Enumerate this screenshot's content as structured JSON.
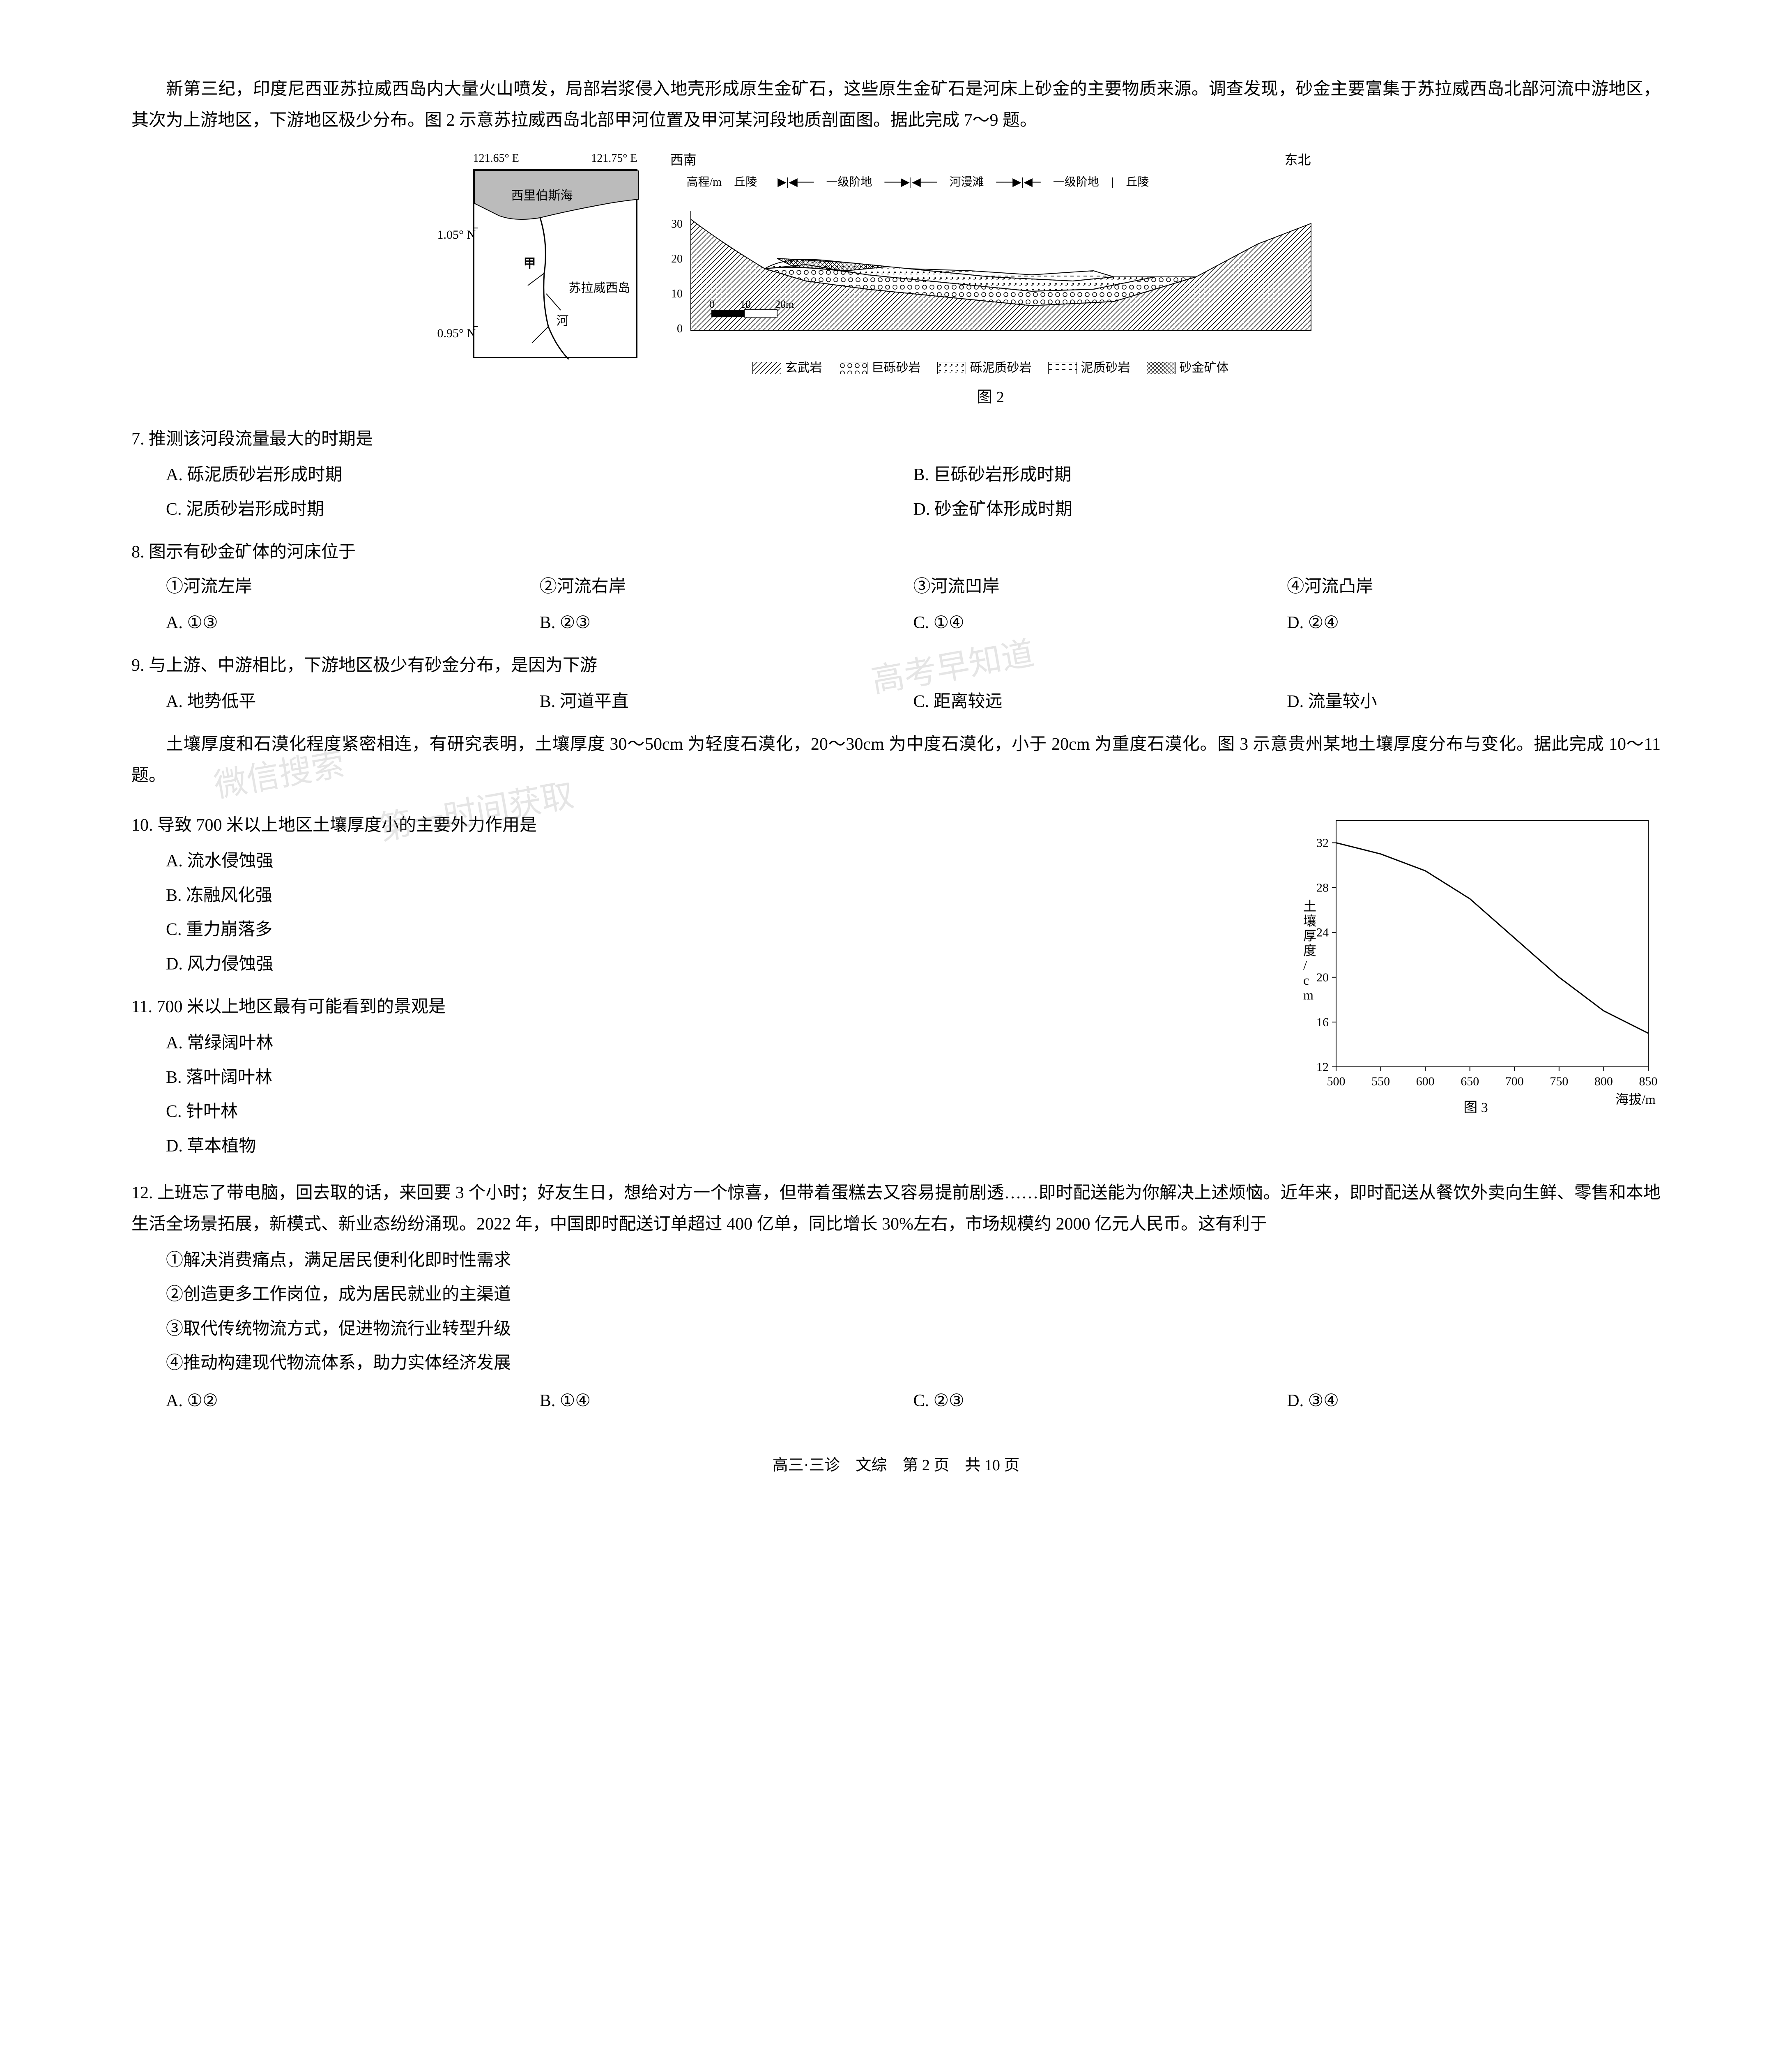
{
  "passage1": {
    "text": "新第三纪，印度尼西亚苏拉威西岛内大量火山喷发，局部岩浆侵入地壳形成原生金矿石，这些原生金矿石是河床上砂金的主要物质来源。调查发现，砂金主要富集于苏拉威西岛北部河流中游地区，其次为上游地区，下游地区极少分布。图 2 示意苏拉威西岛北部甲河位置及甲河某河段地质剖面图。据此完成 7～9 题。"
  },
  "figure2": {
    "caption": "图 2",
    "map": {
      "lon_left": "121.65° E",
      "lon_right": "121.75° E",
      "lat_top": "1.05° N",
      "lat_bottom": "0.95° N",
      "sea_label": "西里伯斯海",
      "island_label": "苏拉威西岛",
      "river_label": "甲",
      "river_char": "河"
    },
    "cross_section": {
      "direction_left": "西南",
      "direction_right": "东北",
      "yaxis_label": "高程/m",
      "regions": [
        "丘陵",
        "一级阶地",
        "河漫滩",
        "一级阶地",
        "丘陵"
      ],
      "yticks": [
        0,
        10,
        20,
        30
      ],
      "scale_bar": "0    10    20m"
    },
    "legend": [
      {
        "pattern": "diag",
        "label": "玄武岩"
      },
      {
        "pattern": "bigdots",
        "label": "巨砾砂岩"
      },
      {
        "pattern": "smalldots",
        "label": "砾泥质砂岩"
      },
      {
        "pattern": "dashes",
        "label": "泥质砂岩"
      },
      {
        "pattern": "crosshatch",
        "label": "砂金矿体"
      }
    ]
  },
  "q7": {
    "stem": "7. 推测该河段流量最大的时期是",
    "A": "A. 砾泥质砂岩形成时期",
    "B": "B. 巨砾砂岩形成时期",
    "C": "C. 泥质砂岩形成时期",
    "D": "D. 砂金矿体形成时期"
  },
  "q8": {
    "stem": "8. 图示有砂金矿体的河床位于",
    "circ1": "①河流左岸",
    "circ2": "②河流右岸",
    "circ3": "③河流凹岸",
    "circ4": "④河流凸岸",
    "A": "A. ①③",
    "B": "B. ②③",
    "C": "C. ①④",
    "D": "D. ②④"
  },
  "q9": {
    "stem": "9. 与上游、中游相比，下游地区极少有砂金分布，是因为下游",
    "A": "A. 地势低平",
    "B": "B. 河道平直",
    "C": "C. 距离较远",
    "D": "D. 流量较小"
  },
  "passage2": {
    "text": "土壤厚度和石漠化程度紧密相连，有研究表明，土壤厚度 30～50cm 为轻度石漠化，20～30cm 为中度石漠化，小于 20cm 为重度石漠化。图 3 示意贵州某地土壤厚度分布与变化。据此完成 10～11 题。"
  },
  "figure3": {
    "caption": "图 3",
    "xlabel": "海拔/m",
    "ylabel": "土壤厚度/cm",
    "xlim": [
      500,
      850
    ],
    "ylim": [
      12,
      34
    ],
    "xticks": [
      500,
      550,
      600,
      650,
      700,
      750,
      800,
      850
    ],
    "yticks": [
      12,
      16,
      20,
      24,
      28,
      32
    ],
    "data_points": [
      [
        500,
        32
      ],
      [
        550,
        31
      ],
      [
        600,
        29.5
      ],
      [
        650,
        27
      ],
      [
        700,
        23.5
      ],
      [
        750,
        20
      ],
      [
        800,
        17
      ],
      [
        850,
        15
      ]
    ],
    "line_color": "#000000",
    "line_width": 3,
    "background_color": "#ffffff",
    "axis_color": "#000000",
    "font_size": 30
  },
  "q10": {
    "stem": "10. 导致 700 米以上地区土壤厚度小的主要外力作用是",
    "A": "A. 流水侵蚀强",
    "B": "B. 冻融风化强",
    "C": "C. 重力崩落多",
    "D": "D. 风力侵蚀强"
  },
  "q11": {
    "stem": "11. 700 米以上地区最有可能看到的景观是",
    "A": "A. 常绿阔叶林",
    "B": "B. 落叶阔叶林",
    "C": "C. 针叶林",
    "D": "D. 草本植物"
  },
  "q12": {
    "stem": "12. 上班忘了带电脑，回去取的话，来回要 3 个小时；好友生日，想给对方一个惊喜，但带着蛋糕去又容易提前剧透……即时配送能为你解决上述烦恼。近年来，即时配送从餐饮外卖向生鲜、零售和本地生活全场景拓展，新模式、新业态纷纷涌现。2022 年，中国即时配送订单超过 400 亿单，同比增长 30%左右，市场规模约 2000 亿元人民币。这有利于",
    "circ1": "①解决消费痛点，满足居民便利化即时性需求",
    "circ2": "②创造更多工作岗位，成为居民就业的主渠道",
    "circ3": "③取代传统物流方式，促进物流行业转型升级",
    "circ4": "④推动构建现代物流体系，助力实体经济发展",
    "A": "A. ①②",
    "B": "B. ①④",
    "C": "C. ②③",
    "D": "D. ③④"
  },
  "footer": "高三·三诊　文综　第 2 页　共 10 页",
  "watermarks": {
    "w1": "高考早知道",
    "w2": "微信搜索",
    "w3": "第一时间获取"
  }
}
